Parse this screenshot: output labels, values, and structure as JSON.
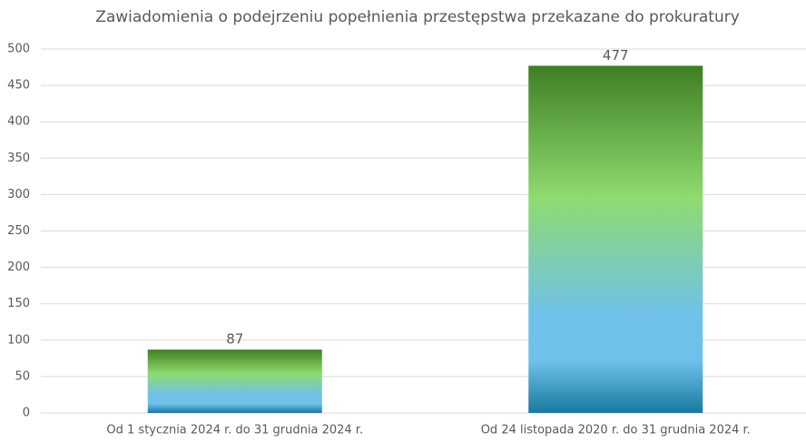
{
  "chart_data": {
    "type": "bar",
    "title": "Zawiadomienia o podejrzeniu popełnienia przestępstwa przekazane do prokuratury",
    "categories": [
      "Od 1 stycznia 2024 r. do 31 grudnia 2024 r.",
      "Od 24 listopada 2020 r. do 31 grudnia 2024 r."
    ],
    "values": [
      87,
      477
    ],
    "gradient": [
      "#3f7f24",
      "#8fdb6f",
      "#6fc1ea",
      "#6fc1ea",
      "#17799f"
    ],
    "ylim": [
      0,
      500
    ],
    "yticks": [
      0,
      50,
      100,
      150,
      200,
      250,
      300,
      350,
      400,
      450,
      500
    ],
    "grid": true
  }
}
